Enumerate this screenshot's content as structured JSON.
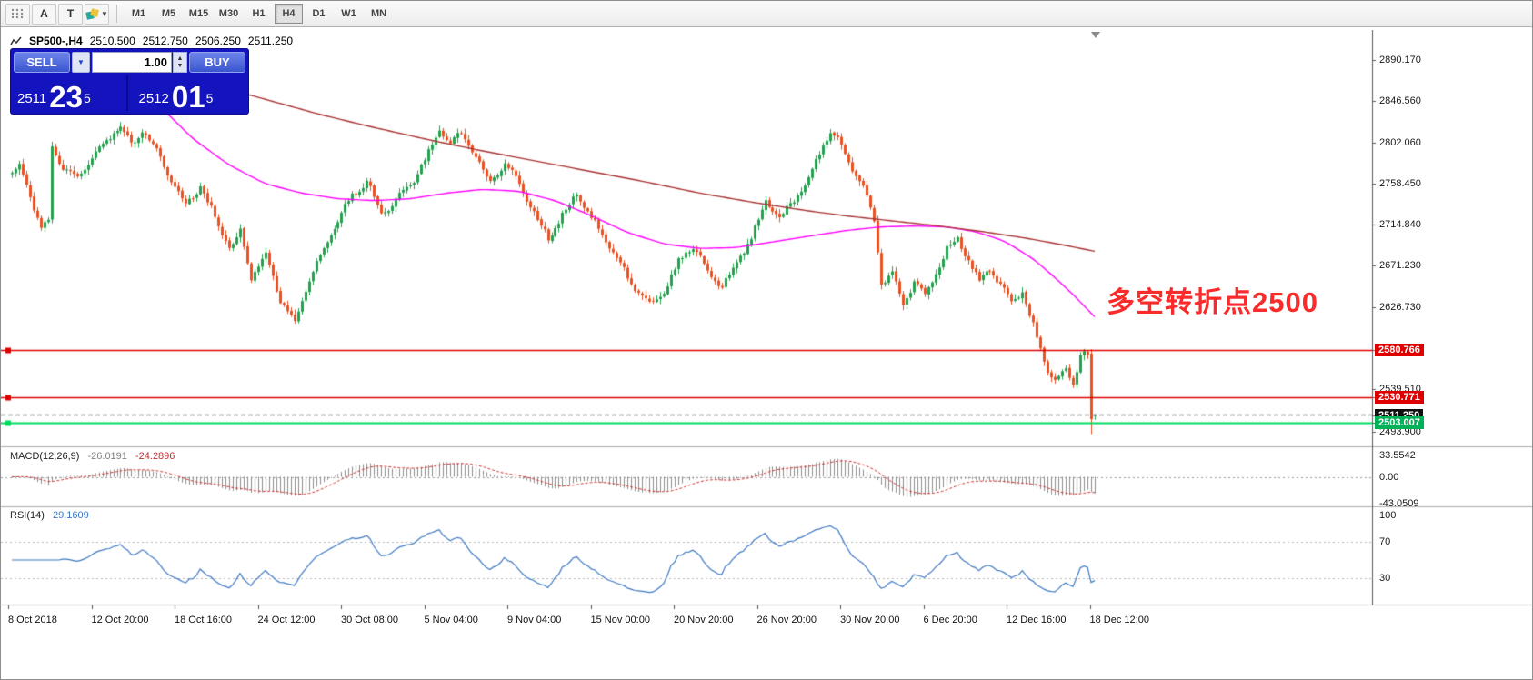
{
  "toolbar": {
    "a_label": "A",
    "t_label": "T",
    "timeframes": [
      {
        "label": "M1"
      },
      {
        "label": "M5"
      },
      {
        "label": "M15"
      },
      {
        "label": "M30"
      },
      {
        "label": "H1"
      },
      {
        "label": "H4",
        "active": true
      },
      {
        "label": "D1"
      },
      {
        "label": "W1"
      },
      {
        "label": "MN"
      }
    ]
  },
  "header": {
    "symbol": "SP500-,H4",
    "open": "2510.500",
    "high": "2512.750",
    "low": "2506.250",
    "close": "2511.250"
  },
  "trade_panel": {
    "sell_label": "SELL",
    "buy_label": "BUY",
    "volume": "1.00",
    "bid": {
      "main": "2511",
      "pips": "23",
      "frac": "5"
    },
    "ask": {
      "main": "2512",
      "pips": "01",
      "frac": "5"
    }
  },
  "annotation": {
    "text": "多空转折点2500",
    "color": "#F92B2B"
  },
  "price_axis": {
    "ticks": [
      {
        "text": "2890.170",
        "value": 2890.17
      },
      {
        "text": "2846.560",
        "value": 2846.56
      },
      {
        "text": "2802.060",
        "value": 2802.06
      },
      {
        "text": "2758.450",
        "value": 2758.45
      },
      {
        "text": "2714.840",
        "value": 2714.84
      },
      {
        "text": "2671.230",
        "value": 2671.23
      },
      {
        "text": "2626.730",
        "value": 2626.73
      },
      {
        "text": "2539.510",
        "value": 2539.51
      },
      {
        "text": "2493.900",
        "value": 2493.9
      }
    ],
    "badges": [
      {
        "text": "2580.766",
        "value": 2580.766,
        "bg": "#DE0000"
      },
      {
        "text": "2530.771",
        "value": 2530.771,
        "bg": "#DE0000"
      },
      {
        "text": "2511.250",
        "value": 2511.25,
        "bg": "#101010"
      },
      {
        "text": "2503.007",
        "value": 2503.007,
        "bg": "#00B257"
      }
    ]
  },
  "indicators": {
    "macd": {
      "name": "MACD(12,26,9)",
      "value_main": "-26.0191",
      "value_signal": "-24.2896",
      "axis": [
        {
          "text": "33.5542",
          "value": 33.5542
        },
        {
          "text": "0.00",
          "value": 0
        },
        {
          "text": "-43.0509",
          "value": -43.0509
        }
      ]
    },
    "rsi": {
      "name": "RSI(14)",
      "value": "29.1609",
      "axis": [
        {
          "text": "100",
          "value": 100
        },
        {
          "text": "70",
          "value": 70
        },
        {
          "text": "30",
          "value": 30
        }
      ],
      "levels": [
        70,
        30
      ]
    }
  },
  "time_axis": {
    "labels": [
      "8 Oct 2018",
      "12 Oct 20:00",
      "18 Oct 16:00",
      "24 Oct 12:00",
      "30 Oct 08:00",
      "5 Nov 04:00",
      "9 Nov 04:00",
      "15 Nov 00:00",
      "20 Nov 20:00",
      "26 Nov 20:00",
      "30 Nov 20:00",
      "6 Dec 20:00",
      "12 Dec 16:00",
      "18 Dec 12:00"
    ]
  },
  "chart_data": {
    "type": "candlestick",
    "symbol": "SP500-",
    "timeframe": "H4",
    "bar_count": 300,
    "price_range_visible": [
      2478,
      2920
    ],
    "current_bar": {
      "open": 2510.5,
      "high": 2512.75,
      "low": 2506.25,
      "close": 2511.25
    },
    "colors": {
      "up": "#23A14E",
      "down": "#E95122"
    },
    "horizontal_lines": [
      {
        "price": 2580.766,
        "color": "#DE0000",
        "style": "solid"
      },
      {
        "price": 2530.771,
        "color": "#DE0000",
        "style": "solid"
      },
      {
        "price": 2503.007,
        "color": "#00DD5E",
        "style": "solid"
      },
      {
        "price": 2512.015,
        "color": "#909090",
        "style": "dashed"
      }
    ],
    "close_anchors": [
      [
        0,
        2768
      ],
      [
        2,
        2775
      ],
      [
        5,
        2745
      ],
      [
        8,
        2712
      ],
      [
        10,
        2718
      ],
      [
        11,
        2795
      ],
      [
        14,
        2776
      ],
      [
        18,
        2762
      ],
      [
        22,
        2788
      ],
      [
        26,
        2803
      ],
      [
        30,
        2820
      ],
      [
        33,
        2798
      ],
      [
        36,
        2815
      ],
      [
        40,
        2792
      ],
      [
        44,
        2760
      ],
      [
        48,
        2734
      ],
      [
        52,
        2756
      ],
      [
        56,
        2722
      ],
      [
        60,
        2690
      ],
      [
        63,
        2706
      ],
      [
        66,
        2658
      ],
      [
        70,
        2682
      ],
      [
        74,
        2635
      ],
      [
        78,
        2608
      ],
      [
        82,
        2655
      ],
      [
        86,
        2690
      ],
      [
        90,
        2720
      ],
      [
        94,
        2745
      ],
      [
        98,
        2762
      ],
      [
        102,
        2724
      ],
      [
        106,
        2742
      ],
      [
        110,
        2756
      ],
      [
        114,
        2784
      ],
      [
        118,
        2814
      ],
      [
        121,
        2802
      ],
      [
        124,
        2812
      ],
      [
        128,
        2788
      ],
      [
        132,
        2758
      ],
      [
        136,
        2780
      ],
      [
        140,
        2758
      ],
      [
        144,
        2726
      ],
      [
        148,
        2700
      ],
      [
        152,
        2724
      ],
      [
        156,
        2748
      ],
      [
        160,
        2720
      ],
      [
        164,
        2698
      ],
      [
        168,
        2672
      ],
      [
        172,
        2645
      ],
      [
        176,
        2630
      ],
      [
        180,
        2642
      ],
      [
        184,
        2675
      ],
      [
        188,
        2692
      ],
      [
        192,
        2665
      ],
      [
        196,
        2648
      ],
      [
        200,
        2675
      ],
      [
        204,
        2700
      ],
      [
        208,
        2740
      ],
      [
        212,
        2722
      ],
      [
        216,
        2740
      ],
      [
        220,
        2762
      ],
      [
        224,
        2800
      ],
      [
        226,
        2816
      ],
      [
        229,
        2798
      ],
      [
        232,
        2775
      ],
      [
        235,
        2755
      ],
      [
        238,
        2718
      ],
      [
        240,
        2652
      ],
      [
        243,
        2662
      ],
      [
        246,
        2626
      ],
      [
        249,
        2655
      ],
      [
        252,
        2640
      ],
      [
        255,
        2662
      ],
      [
        258,
        2688
      ],
      [
        261,
        2700
      ],
      [
        264,
        2676
      ],
      [
        267,
        2655
      ],
      [
        270,
        2668
      ],
      [
        273,
        2650
      ],
      [
        276,
        2630
      ],
      [
        279,
        2642
      ],
      [
        282,
        2606
      ],
      [
        285,
        2568
      ],
      [
        288,
        2546
      ],
      [
        291,
        2558
      ],
      [
        293,
        2544
      ],
      [
        295,
        2578
      ],
      [
        297,
        2574
      ],
      [
        298,
        2577
      ],
      [
        299,
        2511
      ]
    ],
    "ma_fast": {
      "color": "#FF00FF",
      "anchors": [
        [
          39,
          2848
        ],
        [
          50,
          2806
        ],
        [
          60,
          2778
        ],
        [
          70,
          2758
        ],
        [
          80,
          2748
        ],
        [
          90,
          2742
        ],
        [
          100,
          2740
        ],
        [
          110,
          2742
        ],
        [
          120,
          2748
        ],
        [
          130,
          2752
        ],
        [
          140,
          2750
        ],
        [
          150,
          2740
        ],
        [
          160,
          2724
        ],
        [
          170,
          2706
        ],
        [
          180,
          2694
        ],
        [
          190,
          2689
        ],
        [
          200,
          2690
        ],
        [
          210,
          2696
        ],
        [
          220,
          2702
        ],
        [
          230,
          2708
        ],
        [
          240,
          2712
        ],
        [
          250,
          2713
        ],
        [
          258,
          2712
        ],
        [
          266,
          2707
        ],
        [
          274,
          2697
        ],
        [
          282,
          2678
        ],
        [
          288,
          2658
        ],
        [
          293,
          2640
        ],
        [
          299,
          2616
        ]
      ]
    },
    "ma_slow": {
      "color": "#A83232",
      "anchors": [
        [
          57,
          2862
        ],
        [
          70,
          2848
        ],
        [
          85,
          2832
        ],
        [
          100,
          2818
        ],
        [
          115,
          2805
        ],
        [
          130,
          2793
        ],
        [
          145,
          2782
        ],
        [
          160,
          2771
        ],
        [
          175,
          2760
        ],
        [
          190,
          2748
        ],
        [
          205,
          2738
        ],
        [
          220,
          2729
        ],
        [
          232,
          2723
        ],
        [
          244,
          2718
        ],
        [
          256,
          2713
        ],
        [
          268,
          2707
        ],
        [
          280,
          2700
        ],
        [
          290,
          2693
        ],
        [
          299,
          2686
        ]
      ]
    },
    "macd": {
      "fast": 12,
      "slow": 26,
      "signal": 9,
      "current": -26.0191,
      "current_signal": -24.2896,
      "range": [
        -47,
        37
      ]
    },
    "rsi": {
      "period": 14,
      "current": 29.1609
    }
  }
}
